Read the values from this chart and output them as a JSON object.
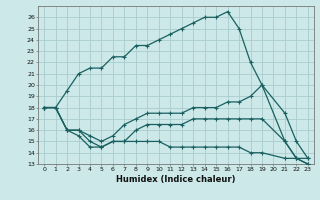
{
  "xlabel": "Humidex (Indice chaleur)",
  "ylabel": "",
  "bg_color": "#cce8e8",
  "grid_color": "#aacccc",
  "line_color": "#1a6060",
  "xlim": [
    -0.5,
    23.5
  ],
  "ylim": [
    13,
    27
  ],
  "yticks": [
    13,
    14,
    15,
    16,
    17,
    18,
    19,
    20,
    21,
    22,
    23,
    24,
    25,
    26
  ],
  "xticks": [
    0,
    1,
    2,
    3,
    4,
    5,
    6,
    7,
    8,
    9,
    10,
    11,
    12,
    13,
    14,
    15,
    16,
    17,
    18,
    19,
    20,
    21,
    22,
    23
  ],
  "series": [
    {
      "x": [
        0,
        1,
        2,
        3,
        4,
        5,
        6,
        7,
        8,
        9,
        10,
        11,
        12,
        13,
        14,
        15,
        16,
        17,
        18,
        19,
        21,
        22,
        23
      ],
      "y": [
        18,
        18,
        19.5,
        21,
        21.5,
        21.5,
        22.5,
        22.5,
        23.5,
        23.5,
        24,
        24.5,
        25,
        25.5,
        26,
        26,
        26.5,
        25,
        22,
        20,
        15,
        13.5,
        13.5
      ]
    },
    {
      "x": [
        0,
        1,
        2,
        3,
        4,
        5,
        6,
        7,
        8,
        9,
        10,
        11,
        12,
        13,
        14,
        15,
        16,
        17,
        18,
        19,
        21,
        22,
        23
      ],
      "y": [
        18,
        18,
        16,
        16,
        15.5,
        15,
        15.5,
        16.5,
        17,
        17.5,
        17.5,
        17.5,
        17.5,
        18,
        18,
        18,
        18.5,
        18.5,
        19,
        20,
        17.5,
        15,
        13.5
      ]
    },
    {
      "x": [
        0,
        1,
        2,
        3,
        4,
        5,
        6,
        7,
        8,
        9,
        10,
        11,
        12,
        13,
        14,
        15,
        16,
        17,
        18,
        19,
        21,
        22,
        23
      ],
      "y": [
        18,
        18,
        16,
        16,
        15,
        14.5,
        15,
        15,
        16,
        16.5,
        16.5,
        16.5,
        16.5,
        17,
        17,
        17,
        17,
        17,
        17,
        17,
        15,
        13.5,
        13
      ]
    },
    {
      "x": [
        0,
        1,
        2,
        3,
        4,
        5,
        6,
        7,
        8,
        9,
        10,
        11,
        12,
        13,
        14,
        15,
        16,
        17,
        18,
        19,
        21,
        22,
        23
      ],
      "y": [
        18,
        18,
        16,
        15.5,
        14.5,
        14.5,
        15,
        15,
        15,
        15,
        15,
        14.5,
        14.5,
        14.5,
        14.5,
        14.5,
        14.5,
        14.5,
        14,
        14,
        13.5,
        13.5,
        13
      ]
    }
  ]
}
